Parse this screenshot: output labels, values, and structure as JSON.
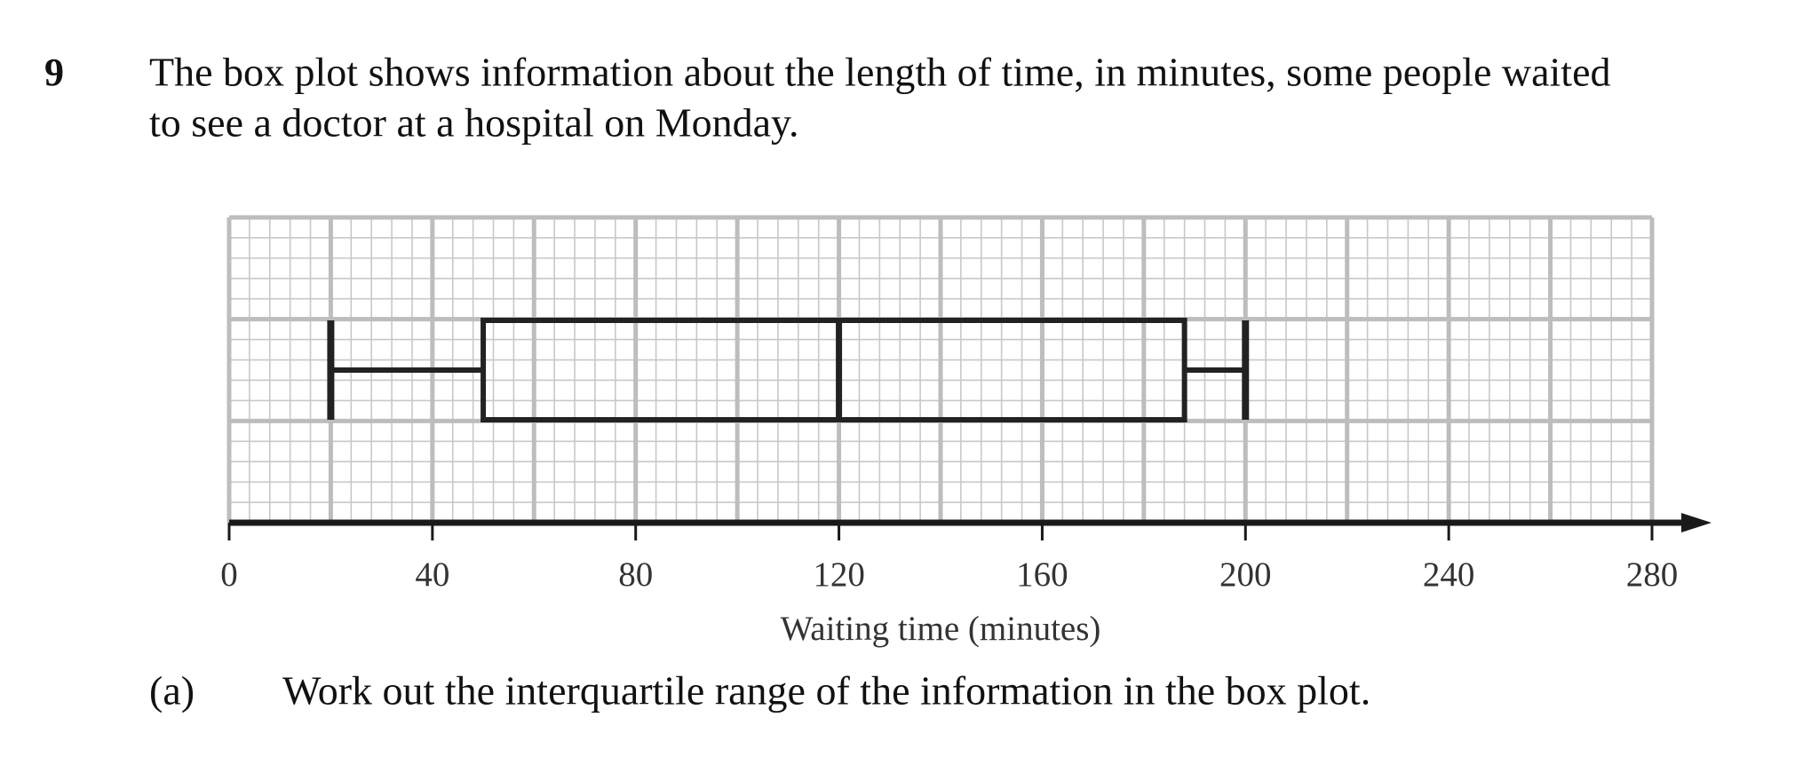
{
  "question": {
    "number": "9",
    "lines": [
      "The box plot shows information about the length of time, in minutes, some people waited",
      "to see a doctor at a hospital on Monday."
    ]
  },
  "chart_data": {
    "type": "box",
    "box": {
      "min": 20,
      "q1": 50,
      "median": 120,
      "q3": 188,
      "max": 200
    },
    "color": "#222222",
    "x_label": "Waiting time (minutes)",
    "xlim": [
      0,
      280
    ],
    "xticks": [
      0,
      40,
      80,
      120,
      160,
      200,
      240,
      280
    ],
    "grid": true
  },
  "part_a": {
    "label": "(a)",
    "text": "Work out the interquartile range of the information in the box plot."
  }
}
